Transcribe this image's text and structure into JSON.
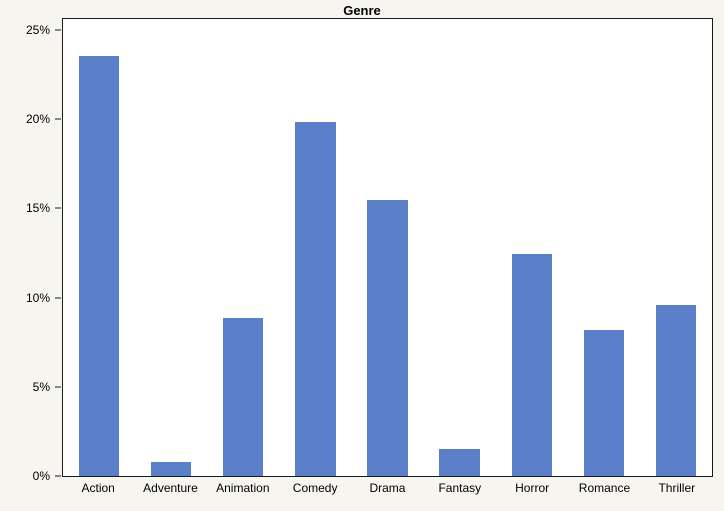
{
  "chart": {
    "background_color": "#f7f5ef",
    "plot_background_color": "#ffffff",
    "bar_color": "#5b7ec8",
    "border_color": "#1a1a1a"
  },
  "chart_data": {
    "type": "bar",
    "title": "Genre",
    "categories": [
      "Action",
      "Adventure",
      "Animation",
      "Comedy",
      "Drama",
      "Fantasy",
      "Horror",
      "Romance",
      "Thriller"
    ],
    "values": [
      23.6,
      0.8,
      8.9,
      19.9,
      15.5,
      1.5,
      12.5,
      8.2,
      9.6
    ],
    "xlabel": "",
    "ylabel": "",
    "ylim": [
      0,
      25
    ],
    "yticks": [
      "0%",
      "5%",
      "10%",
      "15%",
      "20%",
      "25%"
    ],
    "value_unit": "%",
    "grid": false,
    "legend": "none"
  }
}
